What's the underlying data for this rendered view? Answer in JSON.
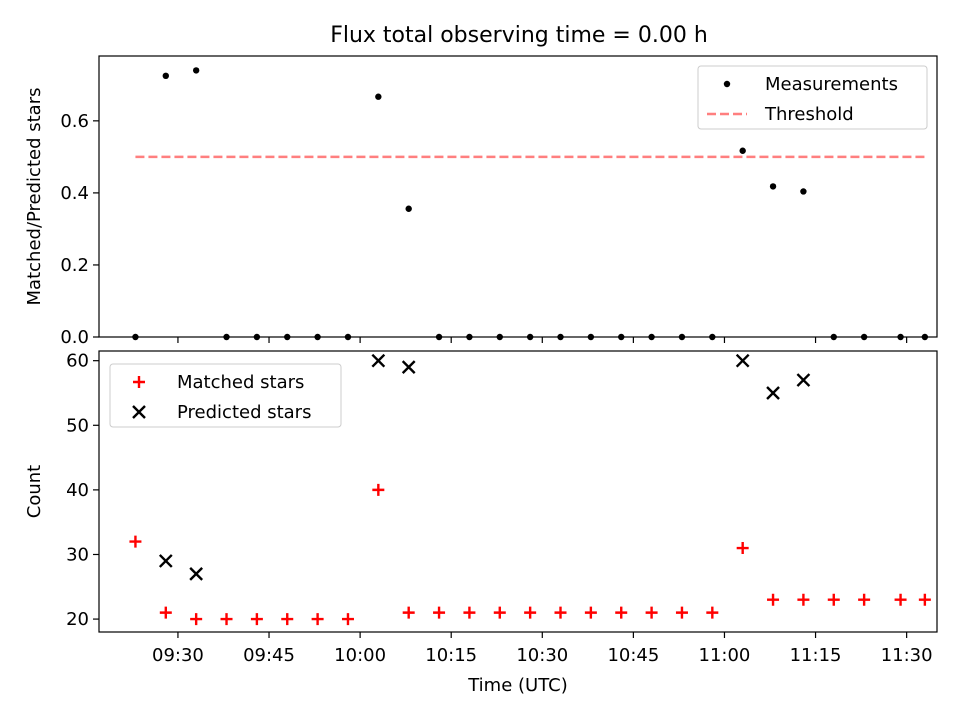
{
  "title": "Flux total observing time = 0.00 h",
  "chart_data": [
    {
      "type": "scatter",
      "ylabel": "Matched/Predicted stars",
      "ylim": [
        0,
        0.78
      ],
      "yticks": [
        0.0,
        0.2,
        0.4,
        0.6
      ],
      "ytick_labels": [
        "0.0",
        "0.2",
        "0.4",
        "0.6"
      ],
      "x_range": [
        "09:17",
        "11:35"
      ],
      "legend_position": "top-right",
      "series": [
        {
          "name": "Measurements",
          "marker": "dot",
          "color": "#000000",
          "x": [
            "09:23",
            "09:28",
            "09:33",
            "09:38",
            "09:43",
            "09:48",
            "09:53",
            "09:58",
            "10:03",
            "10:08",
            "10:13",
            "10:18",
            "10:23",
            "10:28",
            "10:33",
            "10:38",
            "10:43",
            "10:48",
            "10:53",
            "10:58",
            "11:03",
            "11:08",
            "11:13",
            "11:18",
            "11:23",
            "11:29",
            "11:33"
          ],
          "y": [
            0.0,
            0.725,
            0.74,
            0.0,
            0.0,
            0.0,
            0.0,
            0.0,
            0.667,
            0.356,
            0.0,
            0.0,
            0.0,
            0.0,
            0.0,
            0.0,
            0.0,
            0.0,
            0.0,
            0.0,
            0.517,
            0.418,
            0.404,
            0.0,
            0.0,
            0.0,
            0.0
          ]
        },
        {
          "name": "Threshold",
          "style": "dashed",
          "color": "#ff7f7f",
          "x": [
            "09:23",
            "11:33"
          ],
          "y": [
            0.5,
            0.5
          ]
        }
      ]
    },
    {
      "type": "scatter",
      "xlabel": "Time (UTC)",
      "ylabel": "Count",
      "ylim": [
        18,
        61.5
      ],
      "yticks": [
        20,
        30,
        40,
        50,
        60
      ],
      "ytick_labels": [
        "20",
        "30",
        "40",
        "50",
        "60"
      ],
      "xticks": [
        "09:30",
        "09:45",
        "10:00",
        "10:15",
        "10:30",
        "10:45",
        "11:00",
        "11:15",
        "11:30"
      ],
      "xtick_labels": [
        "09:30",
        "09:45",
        "10:00",
        "10:15",
        "10:30",
        "10:45",
        "11:00",
        "11:15",
        "11:30"
      ],
      "x_range": [
        "09:17",
        "11:35"
      ],
      "legend_position": "top-left",
      "series": [
        {
          "name": "Matched stars",
          "marker": "plus",
          "color": "#ff0000",
          "x": [
            "09:23",
            "09:28",
            "09:33",
            "09:38",
            "09:43",
            "09:48",
            "09:53",
            "09:58",
            "10:03",
            "10:08",
            "10:13",
            "10:18",
            "10:23",
            "10:28",
            "10:33",
            "10:38",
            "10:43",
            "10:48",
            "10:53",
            "10:58",
            "11:03",
            "11:08",
            "11:13",
            "11:18",
            "11:23",
            "11:29",
            "11:33"
          ],
          "y": [
            32,
            21,
            20,
            20,
            20,
            20,
            20,
            20,
            40,
            21,
            21,
            21,
            21,
            21,
            21,
            21,
            21,
            21,
            21,
            21,
            31,
            23,
            23,
            23,
            23,
            23,
            23
          ]
        },
        {
          "name": "Predicted stars",
          "marker": "x",
          "color": "#000000",
          "x": [
            "09:28",
            "09:33",
            "10:03",
            "10:08",
            "11:03",
            "11:08",
            "11:13"
          ],
          "y": [
            29,
            27,
            60,
            59,
            60,
            55,
            57
          ]
        }
      ]
    }
  ]
}
